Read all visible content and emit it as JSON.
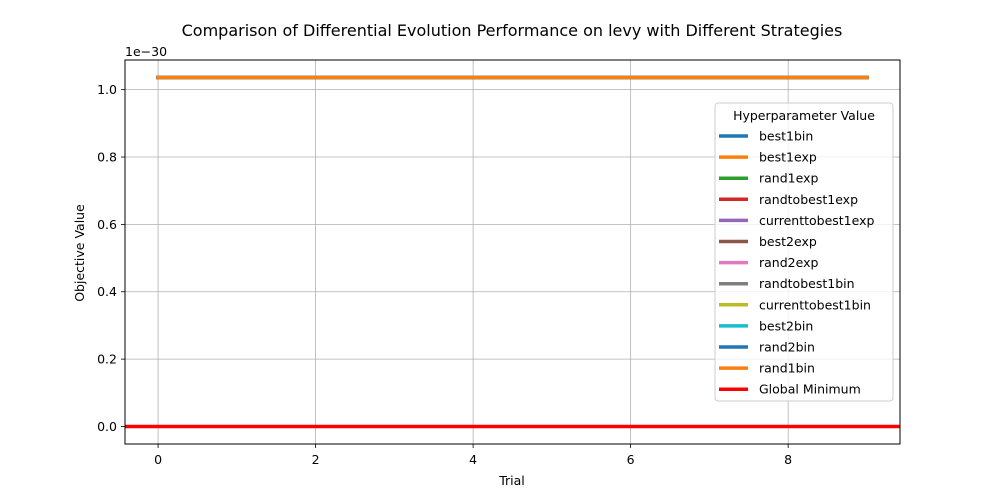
{
  "chart_data": {
    "type": "line",
    "title": "Comparison of Differential Evolution Performance on levy with Different Strategies",
    "xlabel": "Trial",
    "ylabel": "Objective Value",
    "y_offset_text": "1e−30",
    "xlim": [
      -0.42,
      9.42
    ],
    "ylim": [
      -0.052,
      1.088
    ],
    "xticks": [
      0,
      2,
      4,
      6,
      8
    ],
    "xtick_labels": [
      "0",
      "2",
      "4",
      "6",
      "8"
    ],
    "yticks": [
      0.0,
      0.2,
      0.4,
      0.6,
      0.8,
      1.0
    ],
    "ytick_labels": [
      "0.0",
      "0.2",
      "0.4",
      "0.6",
      "0.8",
      "1.0"
    ],
    "grid": true,
    "legend_title": "Hyperparameter Value",
    "legend_position": "right",
    "x": [
      0,
      1,
      2,
      3,
      4,
      5,
      6,
      7,
      8,
      9
    ],
    "series": [
      {
        "name": "best1bin",
        "color": "#1f77b4",
        "values": [
          1.036,
          1.036,
          1.036,
          1.036,
          1.036,
          1.036,
          1.036,
          1.036,
          1.036,
          1.036
        ]
      },
      {
        "name": "best1exp",
        "color": "#ff7f0e",
        "values": [
          1.036,
          1.036,
          1.036,
          1.036,
          1.036,
          1.036,
          1.036,
          1.036,
          1.036,
          1.036
        ]
      },
      {
        "name": "rand1exp",
        "color": "#2ca02c",
        "values": [
          1.036,
          1.036,
          1.036,
          1.036,
          1.036,
          1.036,
          1.036,
          1.036,
          1.036,
          1.036
        ]
      },
      {
        "name": "randtobest1exp",
        "color": "#d62728",
        "values": [
          1.036,
          1.036,
          1.036,
          1.036,
          1.036,
          1.036,
          1.036,
          1.036,
          1.036,
          1.036
        ]
      },
      {
        "name": "currenttobest1exp",
        "color": "#9467bd",
        "values": [
          1.036,
          1.036,
          1.036,
          1.036,
          1.036,
          1.036,
          1.036,
          1.036,
          1.036,
          1.036
        ]
      },
      {
        "name": "best2exp",
        "color": "#8c564b",
        "values": [
          1.036,
          1.036,
          1.036,
          1.036,
          1.036,
          1.036,
          1.036,
          1.036,
          1.036,
          1.036
        ]
      },
      {
        "name": "rand2exp",
        "color": "#e377c2",
        "values": [
          1.036,
          1.036,
          1.036,
          1.036,
          1.036,
          1.036,
          1.036,
          1.036,
          1.036,
          1.036
        ]
      },
      {
        "name": "randtobest1bin",
        "color": "#7f7f7f",
        "values": [
          1.036,
          1.036,
          1.036,
          1.036,
          1.036,
          1.036,
          1.036,
          1.036,
          1.036,
          1.036
        ]
      },
      {
        "name": "currenttobest1bin",
        "color": "#bcbd22",
        "values": [
          1.036,
          1.036,
          1.036,
          1.036,
          1.036,
          1.036,
          1.036,
          1.036,
          1.036,
          1.036
        ]
      },
      {
        "name": "best2bin",
        "color": "#17becf",
        "values": [
          1.036,
          1.036,
          1.036,
          1.036,
          1.036,
          1.036,
          1.036,
          1.036,
          1.036,
          1.036
        ]
      },
      {
        "name": "rand2bin",
        "color": "#1f77b4",
        "values": [
          1.036,
          1.036,
          1.036,
          1.036,
          1.036,
          1.036,
          1.036,
          1.036,
          1.036,
          1.036
        ]
      },
      {
        "name": "rand1bin",
        "color": "#ff7f0e",
        "values": [
          1.036,
          1.036,
          1.036,
          1.036,
          1.036,
          1.036,
          1.036,
          1.036,
          1.036,
          1.036
        ]
      }
    ],
    "reference_lines": [
      {
        "name": "Global Minimum",
        "color": "#ff0000",
        "y": 0.0
      }
    ]
  }
}
